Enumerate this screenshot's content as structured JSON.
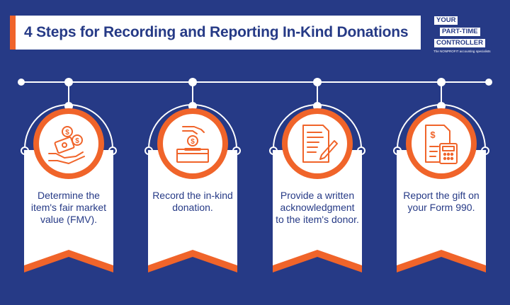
{
  "title": "4 Steps for Recording and Reporting In-Kind Donations",
  "logo": {
    "line1": "YOUR",
    "line2": "PART-TIME",
    "line3": "CONTROLLER",
    "tagline": "The NONPROFIT accounting specialists"
  },
  "colors": {
    "background": "#263a86",
    "accent": "#f0642a",
    "card": "#ffffff",
    "text": "#263a86"
  },
  "steps": [
    {
      "text": "Determine the item's fair market value (FMV).",
      "icon": "money-hand-icon"
    },
    {
      "text": "Record the in-kind donation.",
      "icon": "donation-box-icon"
    },
    {
      "text": "Provide a written acknowledgment to the item's donor.",
      "icon": "document-pen-icon"
    },
    {
      "text": "Report the gift on your Form 990.",
      "icon": "form-calculator-icon"
    }
  ]
}
